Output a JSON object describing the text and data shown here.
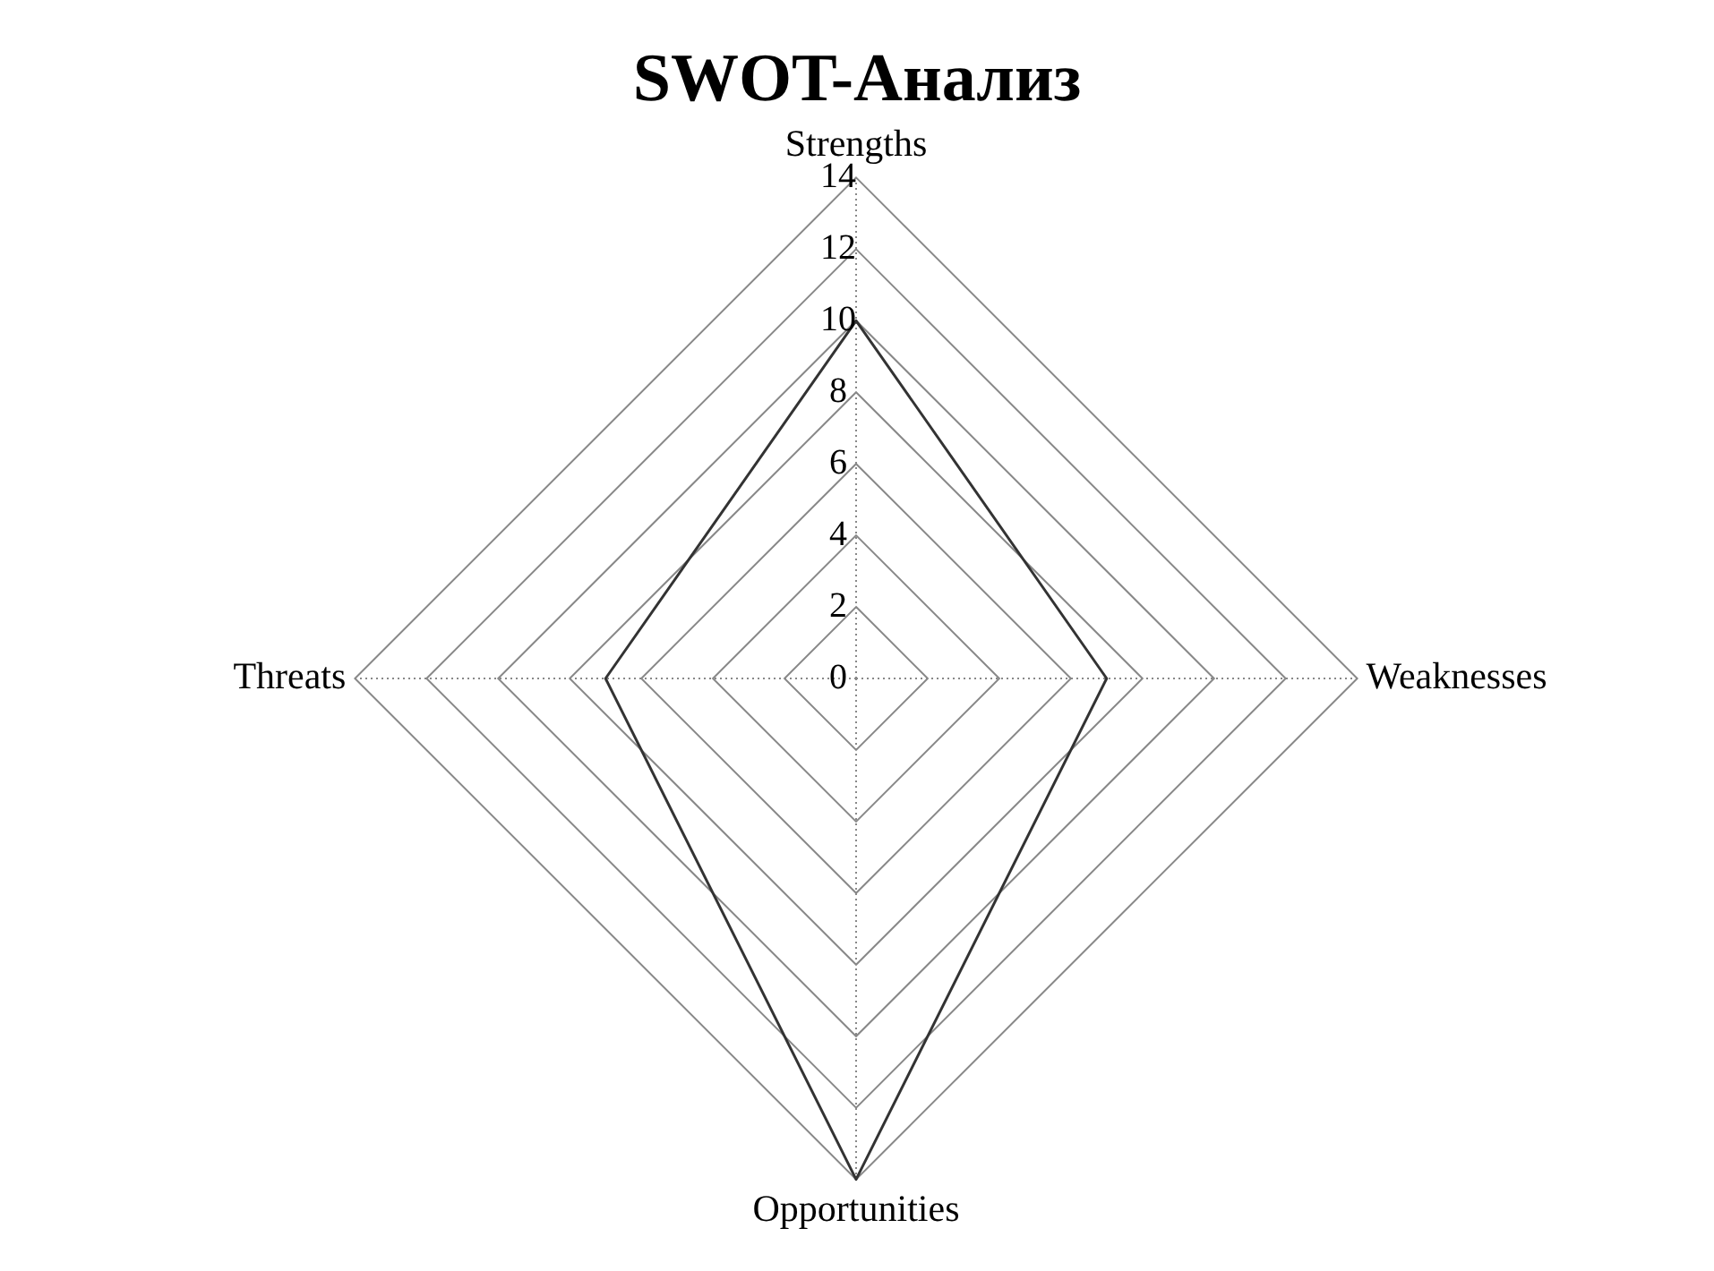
{
  "chart_data": {
    "type": "radar",
    "title": "SWOT-Анализ",
    "categories": [
      "Strengths",
      "Weaknesses",
      "Opportunities",
      "Threats"
    ],
    "series": [
      {
        "color": "#333333",
        "values": [
          10,
          7,
          14,
          7
        ]
      }
    ],
    "ylim": [
      0,
      14
    ],
    "yticks": [
      0,
      2,
      4,
      6,
      8,
      10,
      12,
      14
    ],
    "grid": true,
    "legend": false,
    "marker": "none",
    "line_style": "solid"
  }
}
